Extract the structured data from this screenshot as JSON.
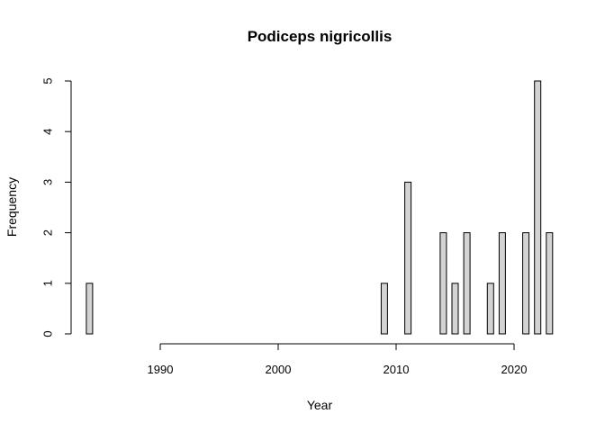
{
  "chart_data": {
    "type": "bar",
    "title": "Podiceps nigricollis",
    "xlabel": "Year",
    "ylabel": "Frequency",
    "bar_color": "#d3d3d3",
    "border_color": "#000000",
    "x": [
      1984,
      1985,
      1986,
      1987,
      1988,
      1989,
      1990,
      1991,
      1992,
      1993,
      1994,
      1995,
      1996,
      1997,
      1998,
      1999,
      2000,
      2001,
      2002,
      2003,
      2004,
      2005,
      2006,
      2007,
      2008,
      2009,
      2010,
      2011,
      2012,
      2013,
      2014,
      2015,
      2016,
      2017,
      2018,
      2019,
      2020,
      2021,
      2022,
      2023
    ],
    "values": [
      1,
      0,
      0,
      0,
      0,
      0,
      0,
      0,
      0,
      0,
      0,
      0,
      0,
      0,
      0,
      0,
      0,
      0,
      0,
      0,
      0,
      0,
      0,
      0,
      0,
      1,
      0,
      3,
      0,
      0,
      2,
      1,
      2,
      0,
      1,
      2,
      0,
      2,
      5,
      2
    ],
    "x_ticks": [
      "1990",
      "2000",
      "2010",
      "2020"
    ],
    "y_ticks": [
      "0",
      "1",
      "2",
      "3",
      "4",
      "5"
    ],
    "xlim": [
      1984,
      2023
    ],
    "ylim": [
      0,
      5
    ],
    "grid": false
  }
}
